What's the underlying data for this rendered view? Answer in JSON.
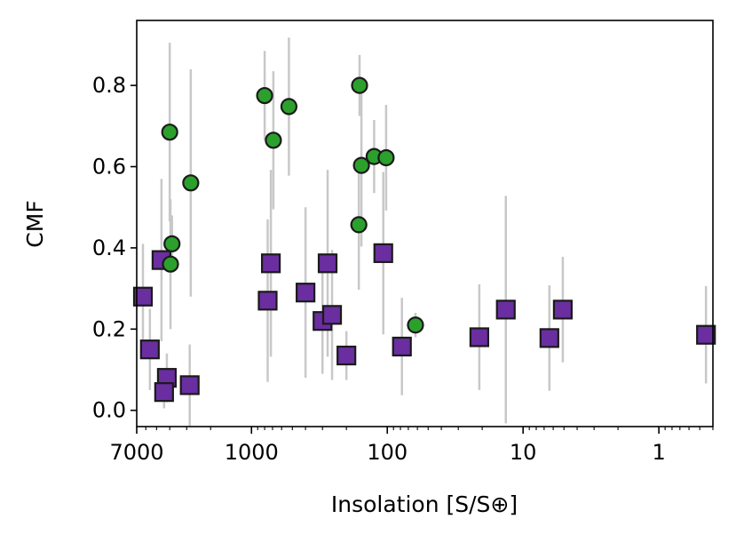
{
  "chart_data": {
    "type": "scatter",
    "title": "",
    "xlabel": "Insolation [S/S⊕]",
    "ylabel": "CMF",
    "xscale": "log",
    "x_reversed": true,
    "xlim": [
      7000,
      0.4
    ],
    "ylim": [
      -0.04,
      0.96
    ],
    "x_tick_values": [
      7000,
      1000,
      100,
      10,
      1
    ],
    "x_tick_labels": [
      "7000",
      "1000",
      "100",
      "10",
      "1"
    ],
    "y_tick_values": [
      0.0,
      0.2,
      0.4,
      0.6,
      0.8
    ],
    "y_tick_labels": [
      "0.0",
      "0.2",
      "0.4",
      "0.6",
      "0.8"
    ],
    "series": [
      {
        "name": "circles",
        "marker": "circle",
        "color": "#2ca02c",
        "points": [
          {
            "x": 4000,
            "y": 0.685,
            "err": 0.22
          },
          {
            "x": 3850,
            "y": 0.41,
            "err": 0.07
          },
          {
            "x": 3950,
            "y": 0.36,
            "err": 0.16
          },
          {
            "x": 2800,
            "y": 0.56,
            "err": 0.28
          },
          {
            "x": 800,
            "y": 0.775,
            "err": 0.11
          },
          {
            "x": 690,
            "y": 0.665,
            "err": 0.17
          },
          {
            "x": 530,
            "y": 0.748,
            "err": 0.17
          },
          {
            "x": 160,
            "y": 0.8,
            "err": 0.075
          },
          {
            "x": 155,
            "y": 0.603,
            "err": 0.2
          },
          {
            "x": 125,
            "y": 0.625,
            "err": 0.09
          },
          {
            "x": 102,
            "y": 0.622,
            "err": 0.13
          },
          {
            "x": 162,
            "y": 0.457,
            "err": 0.16
          },
          {
            "x": 62,
            "y": 0.21,
            "err": 0.03
          }
        ]
      },
      {
        "name": "squares",
        "marker": "square",
        "color": "#6a2ea0",
        "points": [
          {
            "x": 6300,
            "y": 0.28,
            "err": 0.13
          },
          {
            "x": 5600,
            "y": 0.15,
            "err": 0.1
          },
          {
            "x": 4600,
            "y": 0.37,
            "err": 0.2
          },
          {
            "x": 4200,
            "y": 0.08,
            "err": 0.06
          },
          {
            "x": 4400,
            "y": 0.045,
            "err": 0.04
          },
          {
            "x": 2850,
            "y": 0.062,
            "err": 0.1
          },
          {
            "x": 760,
            "y": 0.27,
            "err": 0.2
          },
          {
            "x": 720,
            "y": 0.362,
            "err": 0.23
          },
          {
            "x": 400,
            "y": 0.29,
            "err": 0.21
          },
          {
            "x": 300,
            "y": 0.22,
            "err": 0.13
          },
          {
            "x": 275,
            "y": 0.362,
            "err": 0.23
          },
          {
            "x": 255,
            "y": 0.235,
            "err": 0.16
          },
          {
            "x": 200,
            "y": 0.135,
            "err": 0.06
          },
          {
            "x": 107,
            "y": 0.387,
            "err": 0.2
          },
          {
            "x": 78,
            "y": 0.157,
            "err": 0.12
          },
          {
            "x": 21,
            "y": 0.18,
            "err": 0.13
          },
          {
            "x": 13.4,
            "y": 0.248,
            "err": 0.28
          },
          {
            "x": 6.4,
            "y": 0.178,
            "err": 0.13
          },
          {
            "x": 5.1,
            "y": 0.248,
            "err": 0.13
          },
          {
            "x": 0.45,
            "y": 0.186,
            "err": 0.12
          }
        ]
      }
    ]
  }
}
